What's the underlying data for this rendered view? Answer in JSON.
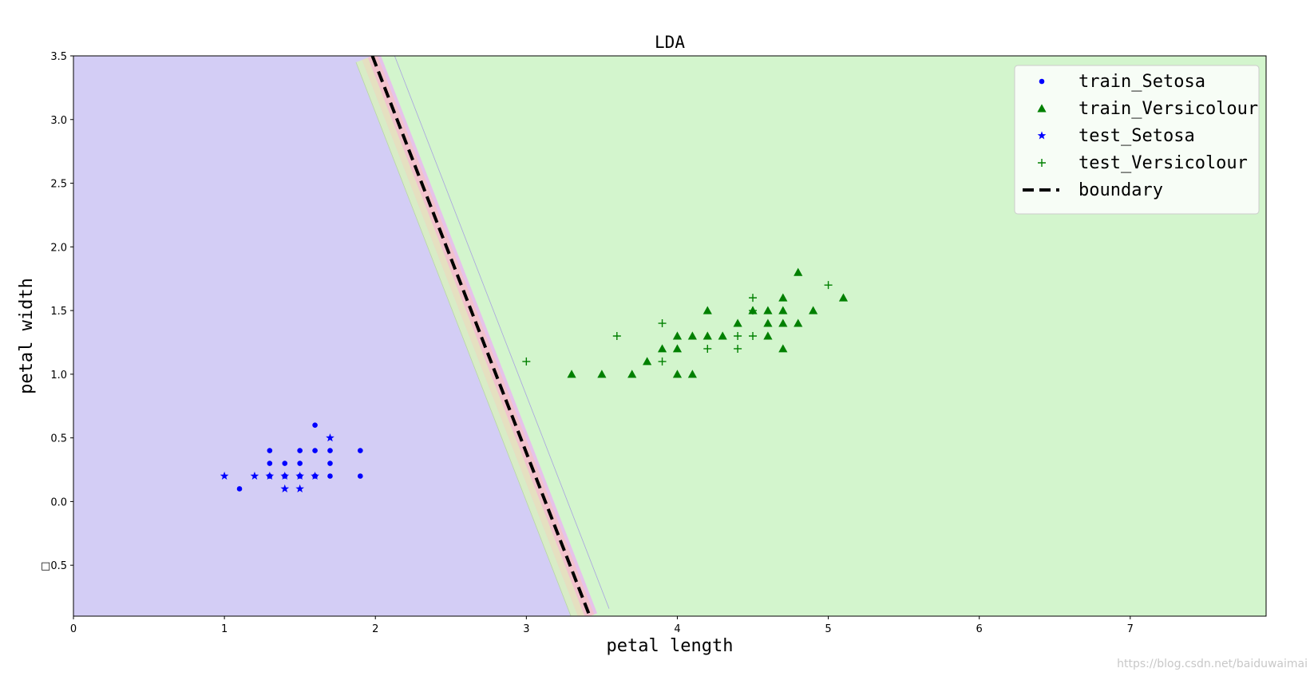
{
  "chart_data": {
    "type": "scatter",
    "title": "LDA",
    "xlabel": "petal length",
    "ylabel": "petal width",
    "xlim": [
      0,
      7.9
    ],
    "ylim": [
      -0.9,
      3.5
    ],
    "xticks": [
      0,
      1,
      2,
      3,
      4,
      5,
      6,
      7
    ],
    "yticks": [
      {
        "value": 3.5,
        "label": "3.5"
      },
      {
        "value": 3.0,
        "label": "3.0"
      },
      {
        "value": 2.5,
        "label": "2.5"
      },
      {
        "value": 2.0,
        "label": "2.0"
      },
      {
        "value": 1.5,
        "label": "1.5"
      },
      {
        "value": 1.0,
        "label": "1.0"
      },
      {
        "value": 0.5,
        "label": "0.5"
      },
      {
        "value": 0.0,
        "label": "0.0"
      },
      {
        "value": -0.5,
        "label": "□0.5"
      }
    ],
    "grid": false,
    "legend_position": "top-right",
    "background_regions": [
      {
        "class": "Setosa",
        "color": "#d3cdf5"
      },
      {
        "class": "Versicolour",
        "color": "#d3f5cd"
      }
    ],
    "boundary": {
      "name": "boundary",
      "x": [
        1.98,
        3.42
      ],
      "y": [
        3.5,
        -0.9
      ],
      "color": "#000000",
      "style": "dashed"
    },
    "series": [
      {
        "name": "train_Setosa",
        "marker": "dot",
        "color": "#0000ff",
        "points": [
          [
            1.1,
            0.1
          ],
          [
            1.3,
            0.2
          ],
          [
            1.3,
            0.3
          ],
          [
            1.3,
            0.4
          ],
          [
            1.4,
            0.2
          ],
          [
            1.4,
            0.3
          ],
          [
            1.5,
            0.2
          ],
          [
            1.5,
            0.3
          ],
          [
            1.5,
            0.4
          ],
          [
            1.6,
            0.2
          ],
          [
            1.6,
            0.4
          ],
          [
            1.6,
            0.6
          ],
          [
            1.7,
            0.2
          ],
          [
            1.7,
            0.3
          ],
          [
            1.7,
            0.4
          ],
          [
            1.9,
            0.2
          ],
          [
            1.9,
            0.4
          ]
        ]
      },
      {
        "name": "train_Versicolour",
        "marker": "triangle",
        "color": "#008000",
        "points": [
          [
            3.3,
            1.0
          ],
          [
            3.5,
            1.0
          ],
          [
            3.7,
            1.0
          ],
          [
            3.8,
            1.1
          ],
          [
            3.9,
            1.2
          ],
          [
            4.0,
            1.0
          ],
          [
            4.0,
            1.2
          ],
          [
            4.0,
            1.3
          ],
          [
            4.1,
            1.0
          ],
          [
            4.1,
            1.3
          ],
          [
            4.2,
            1.3
          ],
          [
            4.2,
            1.5
          ],
          [
            4.3,
            1.3
          ],
          [
            4.4,
            1.4
          ],
          [
            4.5,
            1.5
          ],
          [
            4.6,
            1.3
          ],
          [
            4.6,
            1.4
          ],
          [
            4.6,
            1.5
          ],
          [
            4.7,
            1.2
          ],
          [
            4.7,
            1.4
          ],
          [
            4.7,
            1.5
          ],
          [
            4.7,
            1.6
          ],
          [
            4.8,
            1.4
          ],
          [
            4.8,
            1.8
          ],
          [
            4.9,
            1.5
          ],
          [
            5.1,
            1.6
          ]
        ]
      },
      {
        "name": "test_Setosa",
        "marker": "star",
        "color": "#0000ff",
        "points": [
          [
            1.0,
            0.2
          ],
          [
            1.2,
            0.2
          ],
          [
            1.3,
            0.2
          ],
          [
            1.4,
            0.1
          ],
          [
            1.4,
            0.2
          ],
          [
            1.5,
            0.1
          ],
          [
            1.5,
            0.2
          ],
          [
            1.6,
            0.2
          ],
          [
            1.7,
            0.5
          ]
        ]
      },
      {
        "name": "test_Versicolour",
        "marker": "plus",
        "color": "#008000",
        "points": [
          [
            3.0,
            1.1
          ],
          [
            3.6,
            1.3
          ],
          [
            3.9,
            1.1
          ],
          [
            3.9,
            1.4
          ],
          [
            4.2,
            1.2
          ],
          [
            4.4,
            1.2
          ],
          [
            4.4,
            1.3
          ],
          [
            4.5,
            1.3
          ],
          [
            4.5,
            1.5
          ],
          [
            4.5,
            1.6
          ],
          [
            5.0,
            1.7
          ]
        ]
      }
    ]
  },
  "watermark": "https://blog.csdn.net/baiduwaimai"
}
